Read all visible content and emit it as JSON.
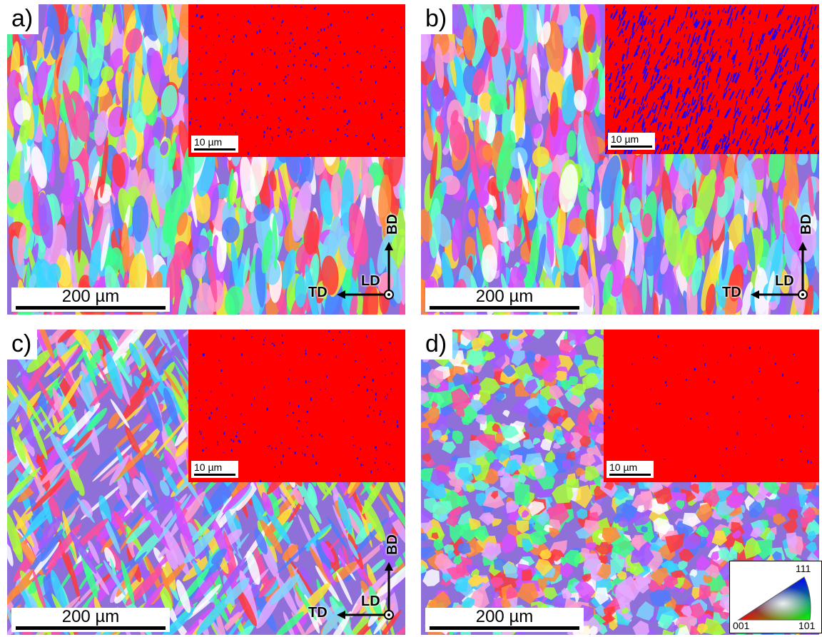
{
  "panels": [
    {
      "label": "a)",
      "scale_bar": "200 µm",
      "inset_scale_bar": "10 µm",
      "axes": {
        "vertical": "BD",
        "horizontal": "TD",
        "out_of_plane": "LD"
      }
    },
    {
      "label": "b)",
      "scale_bar": "200 µm",
      "inset_scale_bar": "10 µm",
      "axes": {
        "vertical": "BD",
        "horizontal": "TD",
        "out_of_plane": "LD"
      }
    },
    {
      "label": "c)",
      "scale_bar": "200 µm",
      "inset_scale_bar": "10 µm",
      "axes": {
        "vertical": "BD",
        "horizontal": "TD",
        "out_of_plane": "LD"
      }
    },
    {
      "label": "d)",
      "scale_bar": "200 µm",
      "inset_scale_bar": "10 µm"
    }
  ],
  "ipf_key": {
    "top": "111",
    "left": "001",
    "right": "101"
  },
  "colors": {
    "inset_background": "#ff0000",
    "inset_points": "#1a00ff"
  }
}
